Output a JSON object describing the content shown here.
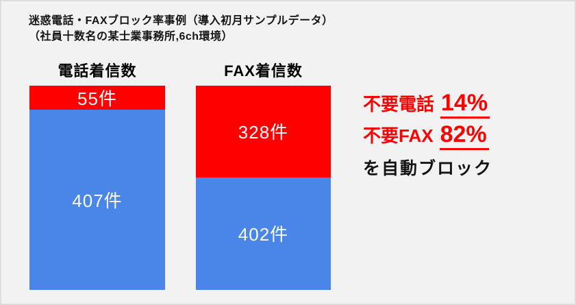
{
  "title": {
    "line1": "迷惑電話・FAXブロック率事例（導入初月サンプルデータ）",
    "line2": "（社員十数名の某士業事務所,6ch環境）"
  },
  "chart_data": {
    "type": "bar",
    "stacked": true,
    "normalized_per_bar": true,
    "unit": "件",
    "categories": [
      "電話着信数",
      "FAX着信数"
    ],
    "series": [
      {
        "name": "red-blocked-segment",
        "color": "#ff0000",
        "values": [
          55,
          328
        ],
        "labels": [
          "55件",
          "328件"
        ]
      },
      {
        "name": "blue-normal-segment",
        "color": "#4a86e8",
        "values": [
          407,
          402
        ],
        "labels": [
          "407件",
          "402件"
        ]
      }
    ],
    "title": "迷惑電話・FAXブロック率事例（導入初月サンプルデータ）",
    "subtitle": "（社員十数名の某士業事務所,6ch環境）",
    "legend": "none",
    "grid": false
  },
  "callout": {
    "phone_label": "不要電話",
    "phone_pct": "14%",
    "fax_label": "不要FAX",
    "fax_pct": "82%",
    "suffix": "を自動ブロック",
    "accent_color": "#ff0000"
  },
  "colors": {
    "background": "#f2f2f2",
    "border": "#dcdcdc",
    "red": "#ff0000",
    "blue": "#4a86e8",
    "bar_label_text": "#fcfcfc"
  }
}
